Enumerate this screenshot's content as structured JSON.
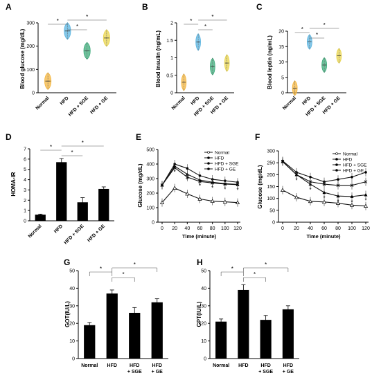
{
  "chart_data": [
    {
      "panel": "A",
      "type": "violin",
      "ylabel": "Blood glucose (mg/dL)",
      "ylim": [
        0,
        300
      ],
      "yticks": [
        "0",
        "100",
        "200",
        "300"
      ],
      "categories": [
        "Normal",
        "HFD",
        "HFD + SGE",
        "HFD + GE"
      ],
      "values": [
        50,
        265,
        180,
        235
      ],
      "colors": [
        "#f4b63f",
        "#5ab4e0",
        "#3cab7a",
        "#e8d44d"
      ],
      "sig": "*"
    },
    {
      "panel": "B",
      "type": "violin",
      "ylabel": "Blood insulin (ng/mL)",
      "ylim": [
        0,
        2
      ],
      "yticks": [
        "0",
        "0.5",
        "1",
        "1.5",
        "2"
      ],
      "categories": [
        "Normal",
        "HFD",
        "HFD + SGE",
        "HFD + GE"
      ],
      "values": [
        0.3,
        1.45,
        0.75,
        0.85
      ],
      "colors": [
        "#f4b63f",
        "#5ab4e0",
        "#3cab7a",
        "#e8d44d"
      ],
      "sig": "*"
    },
    {
      "panel": "C",
      "type": "violin",
      "ylabel": "Blood leptin (ng/mL)",
      "ylim": [
        0,
        20
      ],
      "yticks": [
        "0",
        "5",
        "10",
        "15",
        "20"
      ],
      "categories": [
        "Normal",
        "HFD",
        "HFD + SGE",
        "HFD + GE"
      ],
      "values": [
        1.5,
        16.5,
        9,
        12
      ],
      "colors": [
        "#f4b63f",
        "#5ab4e0",
        "#3cab7a",
        "#e8d44d"
      ],
      "sig": "*"
    },
    {
      "panel": "D",
      "type": "bar",
      "ylabel": "HOMA-IR",
      "ylim": [
        0,
        7
      ],
      "yticks": [
        "0",
        "1",
        "2",
        "3",
        "4",
        "5",
        "6",
        "7"
      ],
      "categories": [
        "Normal",
        "HFD",
        "HFD + SGE",
        "HFD + GE"
      ],
      "values": [
        0.6,
        5.7,
        1.8,
        3.1
      ],
      "errors": [
        0.05,
        0.35,
        0.45,
        0.2
      ],
      "sig": "*"
    },
    {
      "panel": "E",
      "type": "line",
      "ylabel": "Glucose (mg/dL)",
      "xlabel": "Time (minute)",
      "ylim": [
        0,
        500
      ],
      "yticks": [
        "0",
        "100",
        "200",
        "300",
        "400",
        "500"
      ],
      "x": [
        0,
        20,
        40,
        60,
        80,
        100,
        120
      ],
      "xticks": [
        "0",
        "20",
        "40",
        "60",
        "80",
        "100",
        "120"
      ],
      "series": [
        {
          "name": "Normal",
          "values": [
            135,
            235,
            195,
            160,
            145,
            140,
            135
          ]
        },
        {
          "name": "HFD",
          "values": [
            255,
            400,
            370,
            320,
            295,
            285,
            275
          ]
        },
        {
          "name": "HFD + SGE",
          "values": [
            255,
            385,
            330,
            290,
            275,
            265,
            260
          ]
        },
        {
          "name": "HFD + GE",
          "values": [
            255,
            375,
            310,
            280,
            270,
            262,
            258
          ]
        }
      ],
      "sig": "*"
    },
    {
      "panel": "F",
      "type": "line",
      "ylabel": "Glucose (mg/dL)",
      "xlabel": "Time (minute)",
      "ylim": [
        0,
        300
      ],
      "yticks": [
        "0",
        "50",
        "100",
        "150",
        "200",
        "250",
        "300"
      ],
      "x": [
        0,
        20,
        40,
        60,
        80,
        100,
        120
      ],
      "xticks": [
        "0",
        "20",
        "40",
        "60",
        "80",
        "100",
        "120"
      ],
      "series": [
        {
          "name": "Normal",
          "values": [
            135,
            105,
            88,
            85,
            80,
            72,
            68
          ]
        },
        {
          "name": "HFD",
          "values": [
            258,
            210,
            190,
            170,
            180,
            190,
            210
          ]
        },
        {
          "name": "HFD + SGE",
          "values": [
            255,
            200,
            160,
            125,
            110,
            108,
            115
          ]
        },
        {
          "name": "HFD + GE",
          "values": [
            255,
            200,
            170,
            160,
            155,
            155,
            170
          ]
        }
      ],
      "sig": "*"
    },
    {
      "panel": "G",
      "type": "bar",
      "ylabel": "GOT(IU/L)",
      "ylim": [
        0,
        50
      ],
      "yticks": [
        "0",
        "10",
        "20",
        "30",
        "40",
        "50"
      ],
      "categories": [
        "Normal",
        "HFD",
        "HFD\n+ SGE",
        "HFD\n+ GE"
      ],
      "values": [
        19,
        37,
        26,
        32
      ],
      "errors": [
        1.5,
        2,
        3,
        2
      ],
      "sig": "*"
    },
    {
      "panel": "H",
      "type": "bar",
      "ylabel": "GPT(IU/L)",
      "ylim": [
        0,
        50
      ],
      "yticks": [
        "0",
        "10",
        "20",
        "30",
        "40",
        "50"
      ],
      "categories": [
        "Normal",
        "HFD",
        "HFD\n+ SGE",
        "HFD\n+ GE"
      ],
      "values": [
        21,
        39,
        22,
        28
      ],
      "errors": [
        1.5,
        3,
        2.5,
        2
      ],
      "sig": "*"
    }
  ]
}
